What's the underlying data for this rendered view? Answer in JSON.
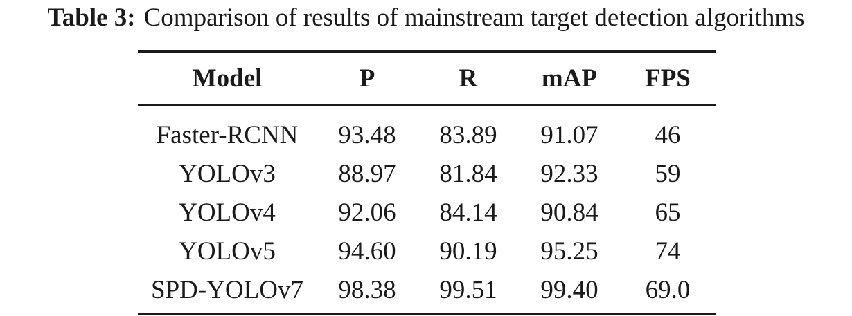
{
  "caption": {
    "label": "Table 3:",
    "text": "Comparison of results of mainstream target detection algorithms"
  },
  "table": {
    "headers": [
      "Model",
      "P",
      "R",
      "mAP",
      "FPS"
    ],
    "rows": [
      [
        "Faster-RCNN",
        "93.48",
        "83.89",
        "91.07",
        "46"
      ],
      [
        "YOLOv3",
        "88.97",
        "81.84",
        "92.33",
        "59"
      ],
      [
        "YOLOv4",
        "92.06",
        "84.14",
        "90.84",
        "65"
      ],
      [
        "YOLOv5",
        "94.60",
        "90.19",
        "95.25",
        "74"
      ],
      [
        "SPD-YOLOv7",
        "98.38",
        "99.51",
        "99.40",
        "69.0"
      ]
    ]
  }
}
